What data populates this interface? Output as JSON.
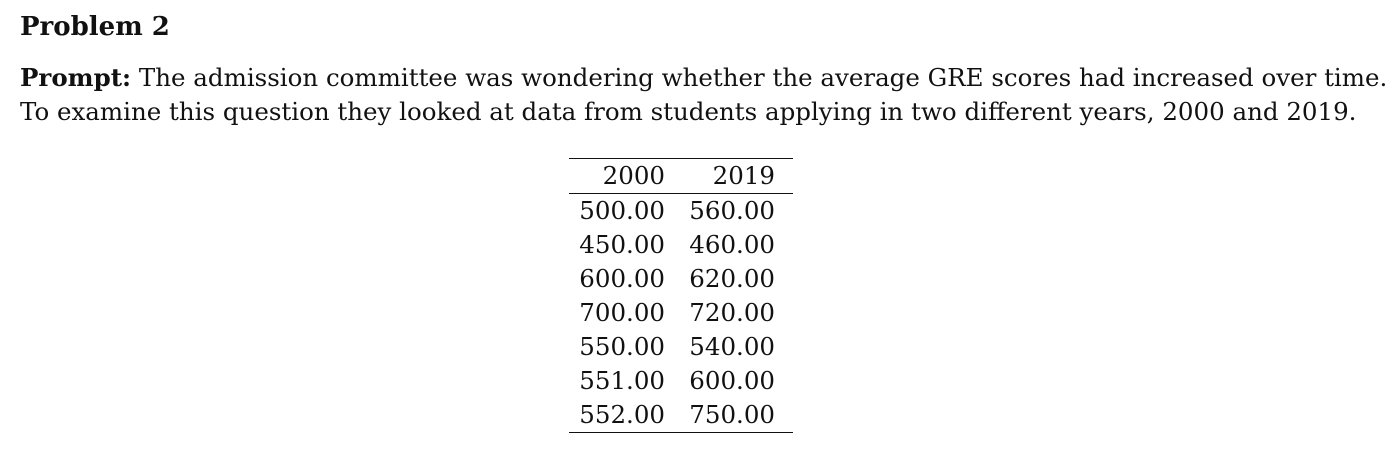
{
  "heading": "Problem 2",
  "prompt": {
    "label": "Prompt:",
    "line1": "The admission committee was wondering whether the average GRE scores had increased over time.",
    "line2": "To examine this question they looked at data from students applying in two different years, 2000 and 2019."
  },
  "table": {
    "headers": [
      "2000",
      "2019"
    ],
    "rows": [
      [
        "500.00",
        "560.00"
      ],
      [
        "450.00",
        "460.00"
      ],
      [
        "600.00",
        "620.00"
      ],
      [
        "700.00",
        "720.00"
      ],
      [
        "550.00",
        "540.00"
      ],
      [
        "551.00",
        "600.00"
      ],
      [
        "552.00",
        "750.00"
      ]
    ]
  }
}
